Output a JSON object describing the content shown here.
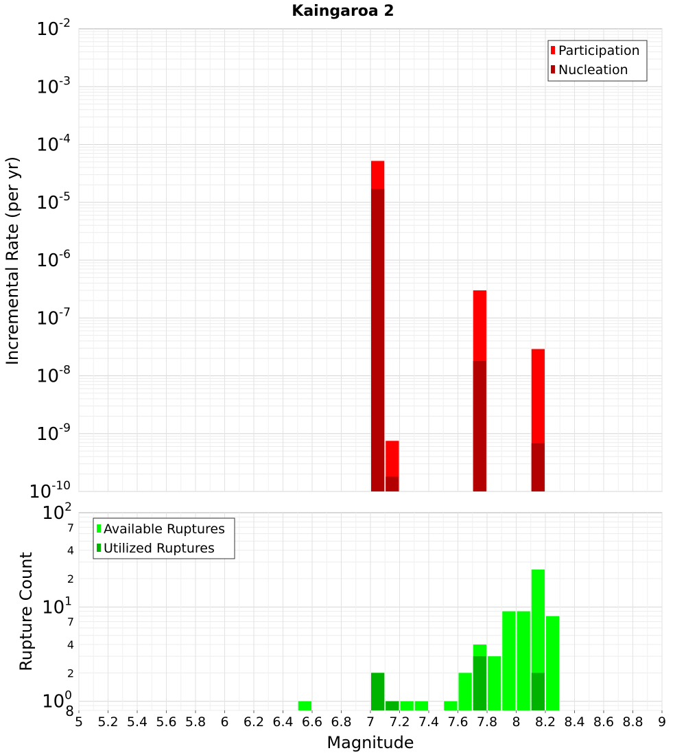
{
  "chart_data": [
    {
      "type": "bar",
      "title": "Kaingaroa 2",
      "ylabel": "Incremental Rate (per yr)",
      "yscale": "log",
      "ylim": [
        1e-10,
        0.01
      ],
      "y_tick_exponents": [
        "-2",
        "-3",
        "-4",
        "-5",
        "-6",
        "-7",
        "-8",
        "-9",
        "-10"
      ],
      "y_tick_base": "10",
      "bar_width": 0.1,
      "legend": {
        "placement": "top-right",
        "entries": [
          "Participation",
          "Nucleation"
        ]
      },
      "colors": {
        "Participation": "#ff0000",
        "Nucleation": "#b30000"
      },
      "series": [
        {
          "name": "Participation",
          "x": [
            7.05,
            7.15,
            7.75,
            8.15
          ],
          "values": [
            5.2e-05,
            7.5e-10,
            3e-07,
            2.9e-08
          ]
        },
        {
          "name": "Nucleation",
          "x": [
            7.05,
            7.15,
            7.75,
            8.15
          ],
          "values": [
            1.7e-05,
            1.8e-10,
            1.8e-08,
            6.8e-10
          ]
        }
      ]
    },
    {
      "type": "bar",
      "xlabel": "Magnitude",
      "ylabel": "Rupture Count",
      "yscale": "log",
      "ylim": [
        0.8,
        100
      ],
      "xlim": [
        5,
        9
      ],
      "x_ticks": [
        "5",
        "5.2",
        "5.4",
        "5.6",
        "5.8",
        "6",
        "6.2",
        "6.4",
        "6.6",
        "6.8",
        "7",
        "7.2",
        "7.4",
        "7.6",
        "7.8",
        "8",
        "8.2",
        "8.4",
        "8.6",
        "8.8",
        "9"
      ],
      "y_major_ticks": [
        {
          "value": 100,
          "base": "10",
          "exp": "2"
        },
        {
          "value": 10,
          "base": "10",
          "exp": "1"
        },
        {
          "value": 1,
          "base": "10",
          "exp": "0"
        }
      ],
      "y_minor_ticks": [
        {
          "value": 70,
          "label": "7"
        },
        {
          "value": 40,
          "label": "4"
        },
        {
          "value": 20,
          "label": "2"
        },
        {
          "value": 7,
          "label": "7"
        },
        {
          "value": 4,
          "label": "4"
        },
        {
          "value": 2,
          "label": "2"
        },
        {
          "value": 0.8,
          "label": "8"
        }
      ],
      "bar_width": 0.1,
      "legend": {
        "placement": "top-left",
        "entries": [
          "Available Ruptures",
          "Utilized Ruptures"
        ]
      },
      "colors": {
        "Available Ruptures": "#00ff00",
        "Utilized Ruptures": "#00b300"
      },
      "series": [
        {
          "name": "Available Ruptures",
          "x": [
            6.55,
            7.05,
            7.15,
            7.25,
            7.35,
            7.55,
            7.65,
            7.75,
            7.85,
            7.95,
            8.05,
            8.15,
            8.25
          ],
          "values": [
            1,
            2,
            1,
            1,
            1,
            1,
            2,
            4,
            3,
            9,
            9,
            25,
            8
          ]
        },
        {
          "name": "Utilized Ruptures",
          "x": [
            7.05,
            7.15,
            7.75,
            8.15
          ],
          "values": [
            2,
            1,
            3,
            2
          ]
        }
      ]
    }
  ]
}
